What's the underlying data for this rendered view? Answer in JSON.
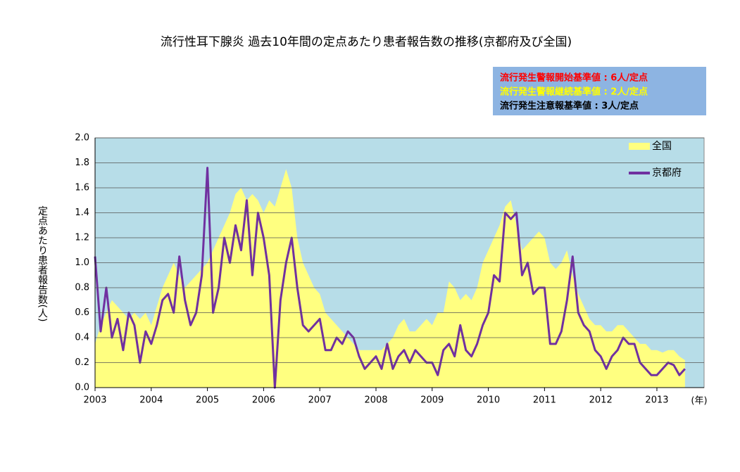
{
  "chart_data": {
    "type": "line",
    "title": "流行性耳下腺炎 過去10年間の定点あたり患者報告数の推移(京都府及び全国)",
    "notes": [
      {
        "text": "流行発生警報開始基準値 : 6人/定点",
        "color": "#ff0000"
      },
      {
        "text": "流行発生警報継続基準値 : 2人/定点",
        "color": "#ffff00"
      },
      {
        "text": "流行発生注意報基準値 : 3人/定点",
        "color": "#000000"
      }
    ],
    "y_label": "定点あたり患者報告数(人)",
    "x_label": "(年)",
    "xlim": [
      2003,
      2013.84
    ],
    "xticks": [
      2003,
      2004,
      2005,
      2006,
      2007,
      2008,
      2009,
      2010,
      2011,
      2012,
      2013
    ],
    "ylim": [
      0,
      2
    ],
    "yticks": [
      {
        "value": 0,
        "label": "0.0"
      },
      {
        "value": 0.2,
        "label": "0.2"
      },
      {
        "value": 0.4,
        "label": "0.4"
      },
      {
        "value": 0.6,
        "label": "0.6"
      },
      {
        "value": 0.8,
        "label": "0.8"
      },
      {
        "value": 1,
        "label": "1.0"
      },
      {
        "value": 1.2,
        "label": "1.2"
      },
      {
        "value": 1.4,
        "label": "1.4"
      },
      {
        "value": 1.6,
        "label": "1.6"
      },
      {
        "value": 1.8,
        "label": "1.8"
      },
      {
        "value": 2,
        "label": "2.0"
      }
    ],
    "grid": true,
    "background": "#b7dde8",
    "x": [
      2003,
      2003.1,
      2003.2,
      2003.3,
      2003.4,
      2003.5,
      2003.6,
      2003.7,
      2003.8,
      2003.9,
      2004,
      2004.1,
      2004.2,
      2004.3,
      2004.4,
      2004.5,
      2004.6,
      2004.7,
      2004.8,
      2004.9,
      2005,
      2005.1,
      2005.2,
      2005.3,
      2005.4,
      2005.5,
      2005.6,
      2005.7,
      2005.8,
      2005.9,
      2006,
      2006.1,
      2006.2,
      2006.3,
      2006.4,
      2006.5,
      2006.6,
      2006.7,
      2006.8,
      2006.9,
      2007,
      2007.1,
      2007.2,
      2007.3,
      2007.4,
      2007.5,
      2007.6,
      2007.7,
      2007.8,
      2007.9,
      2008,
      2008.1,
      2008.2,
      2008.3,
      2008.4,
      2008.5,
      2008.6,
      2008.7,
      2008.8,
      2008.9,
      2009,
      2009.1,
      2009.2,
      2009.3,
      2009.4,
      2009.5,
      2009.6,
      2009.7,
      2009.8,
      2009.9,
      2010,
      2010.1,
      2010.2,
      2010.3,
      2010.4,
      2010.5,
      2010.6,
      2010.7,
      2010.8,
      2010.9,
      2011,
      2011.1,
      2011.2,
      2011.3,
      2011.4,
      2011.5,
      2011.6,
      2011.7,
      2011.8,
      2011.9,
      2012,
      2012.1,
      2012.2,
      2012.3,
      2012.4,
      2012.5,
      2012.6,
      2012.7,
      2012.8,
      2012.9,
      2013,
      2013.1,
      2013.2,
      2013.3,
      2013.4,
      2013.5
    ],
    "series": [
      {
        "name": "全国",
        "type": "area",
        "color": "#ffff80",
        "values": [
          0.35,
          0.5,
          0.6,
          0.7,
          0.65,
          0.6,
          0.55,
          0.6,
          0.55,
          0.6,
          0.5,
          0.65,
          0.8,
          0.9,
          1.0,
          0.9,
          0.8,
          0.85,
          0.9,
          0.95,
          1.0,
          1.1,
          1.2,
          1.3,
          1.4,
          1.55,
          1.6,
          1.5,
          1.55,
          1.5,
          1.4,
          1.5,
          1.45,
          1.6,
          1.75,
          1.6,
          1.2,
          1.0,
          0.9,
          0.8,
          0.75,
          0.6,
          0.55,
          0.5,
          0.45,
          0.4,
          0.35,
          0.3,
          0.3,
          0.3,
          0.3,
          0.3,
          0.35,
          0.4,
          0.5,
          0.55,
          0.45,
          0.45,
          0.5,
          0.55,
          0.5,
          0.6,
          0.6,
          0.85,
          0.8,
          0.7,
          0.75,
          0.7,
          0.8,
          1.0,
          1.1,
          1.2,
          1.3,
          1.45,
          1.5,
          1.3,
          1.1,
          1.15,
          1.2,
          1.25,
          1.2,
          1.0,
          0.95,
          1.0,
          1.1,
          0.9,
          0.75,
          0.65,
          0.55,
          0.5,
          0.5,
          0.45,
          0.45,
          0.5,
          0.5,
          0.45,
          0.4,
          0.35,
          0.35,
          0.3,
          0.3,
          0.28,
          0.3,
          0.3,
          0.25,
          0.22
        ]
      },
      {
        "name": "京都府",
        "type": "line",
        "color": "#7030a0",
        "values": [
          1.05,
          0.45,
          0.8,
          0.4,
          0.55,
          0.3,
          0.6,
          0.5,
          0.2,
          0.45,
          0.35,
          0.5,
          0.7,
          0.75,
          0.6,
          1.05,
          0.7,
          0.5,
          0.6,
          0.9,
          1.76,
          0.6,
          0.8,
          1.2,
          1.0,
          1.3,
          1.1,
          1.5,
          0.9,
          1.4,
          1.2,
          0.9,
          0.0,
          0.7,
          1.0,
          1.2,
          0.8,
          0.5,
          0.45,
          0.5,
          0.55,
          0.3,
          0.3,
          0.4,
          0.35,
          0.45,
          0.4,
          0.25,
          0.15,
          0.2,
          0.25,
          0.15,
          0.35,
          0.15,
          0.25,
          0.3,
          0.2,
          0.3,
          0.25,
          0.2,
          0.2,
          0.1,
          0.3,
          0.35,
          0.25,
          0.5,
          0.3,
          0.25,
          0.35,
          0.5,
          0.6,
          0.9,
          0.85,
          1.4,
          1.35,
          1.4,
          0.9,
          1.0,
          0.75,
          0.8,
          0.8,
          0.35,
          0.35,
          0.45,
          0.7,
          1.05,
          0.6,
          0.5,
          0.45,
          0.3,
          0.25,
          0.15,
          0.25,
          0.3,
          0.4,
          0.35,
          0.35,
          0.2,
          0.15,
          0.1,
          0.1,
          0.15,
          0.2,
          0.18,
          0.1,
          0.15
        ]
      }
    ]
  }
}
